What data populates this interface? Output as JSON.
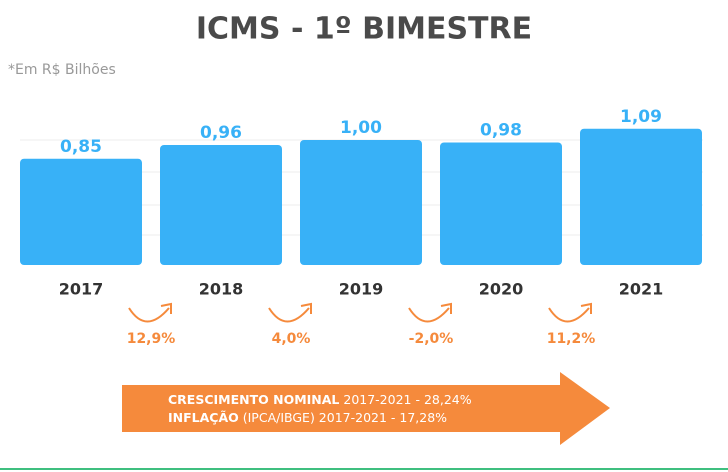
{
  "chart_data": {
    "type": "bar",
    "title": "ICMS - 1º BIMESTRE",
    "subtitle": "*Em R$ Bilhões",
    "categories": [
      "2017",
      "2018",
      "2019",
      "2020",
      "2021"
    ],
    "values": [
      0.85,
      0.96,
      1.0,
      0.98,
      1.09
    ],
    "value_labels": [
      "0,85",
      "0,96",
      "1,00",
      "0,98",
      "1,09"
    ],
    "color": "#38b1f7",
    "ylim": [
      0,
      1.2
    ],
    "growth_labels": [
      "12,9%",
      "4,0%",
      "-2,0%",
      "11,2%"
    ],
    "notes": [
      {
        "bold": "CRESCIMENTO NOMINAL",
        "text": " 2017-2021 - 28,24%"
      },
      {
        "bold": "INFLAÇÃO",
        "text": " (IPCA/IBGE) 2017-2021 - 17,28%"
      }
    ]
  }
}
